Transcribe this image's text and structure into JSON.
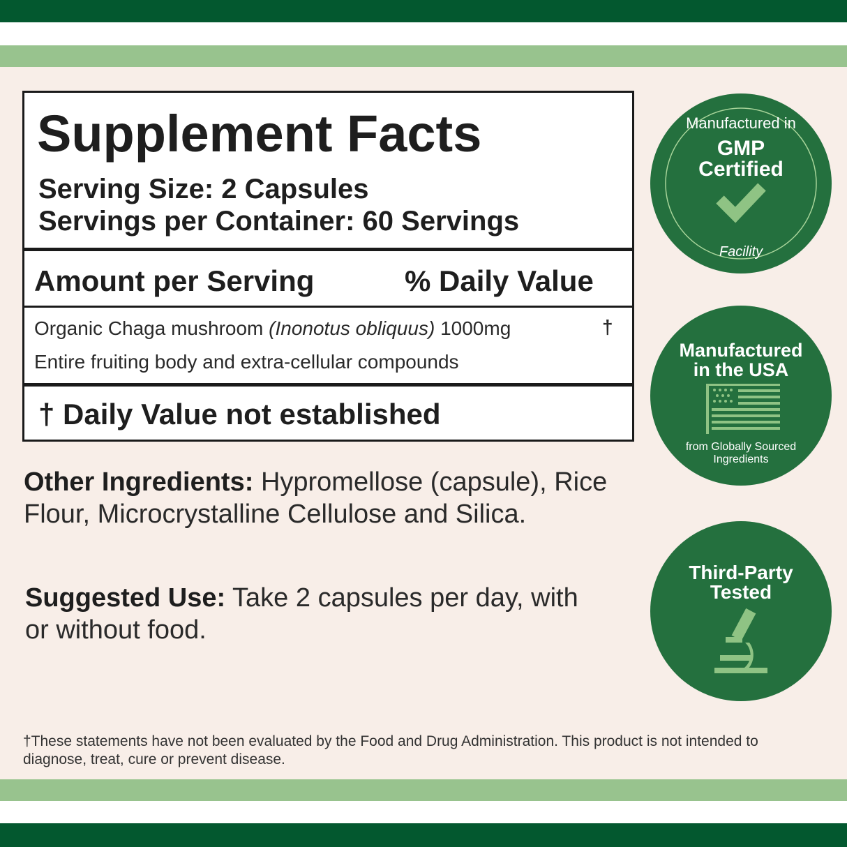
{
  "colors": {
    "dark_green": "#03582f",
    "light_green": "#98c38e",
    "badge_green": "#24703e",
    "background": "#f8eee8"
  },
  "facts": {
    "title": "Supplement Facts",
    "serving_size": "Serving Size: 2 Capsules",
    "servings_per_container": "Servings per Container: 60 Servings",
    "amount_header": "Amount per Serving",
    "dv_header": "% Daily Value",
    "ingredient_name": "Organic Chaga mushroom",
    "ingredient_latin": "(Inonotus obliquus)",
    "ingredient_amount": "1000mg",
    "ingredient_dv": "†",
    "ingredient_note": "Entire fruiting body and extra-cellular compounds",
    "footnote": "† Daily Value not established"
  },
  "other_ingredients": {
    "label": "Other Ingredients:",
    "text": "Hypromellose (capsule), Rice Flour, Microcrystalline Cellulose and Silica."
  },
  "suggested_use": {
    "label": "Suggested Use:",
    "text": "Take 2 capsules per day, with or without food."
  },
  "badges": [
    {
      "top": "Manufactured in",
      "main_1": "GMP",
      "main_2": "Certified",
      "bottom": "Facility",
      "icon": "check-icon"
    },
    {
      "main_1": "Manufactured",
      "main_2": "in the USA",
      "sub_1": "from Globally Sourced",
      "sub_2": "Ingredients",
      "icon": "us-flag-icon"
    },
    {
      "main_1": "Third-Party",
      "main_2": "Tested",
      "icon": "microscope-icon"
    }
  ],
  "disclaimer": "†These statements have not been evaluated by the Food and Drug Administration. This product is not intended to diagnose, treat, cure or prevent disease."
}
